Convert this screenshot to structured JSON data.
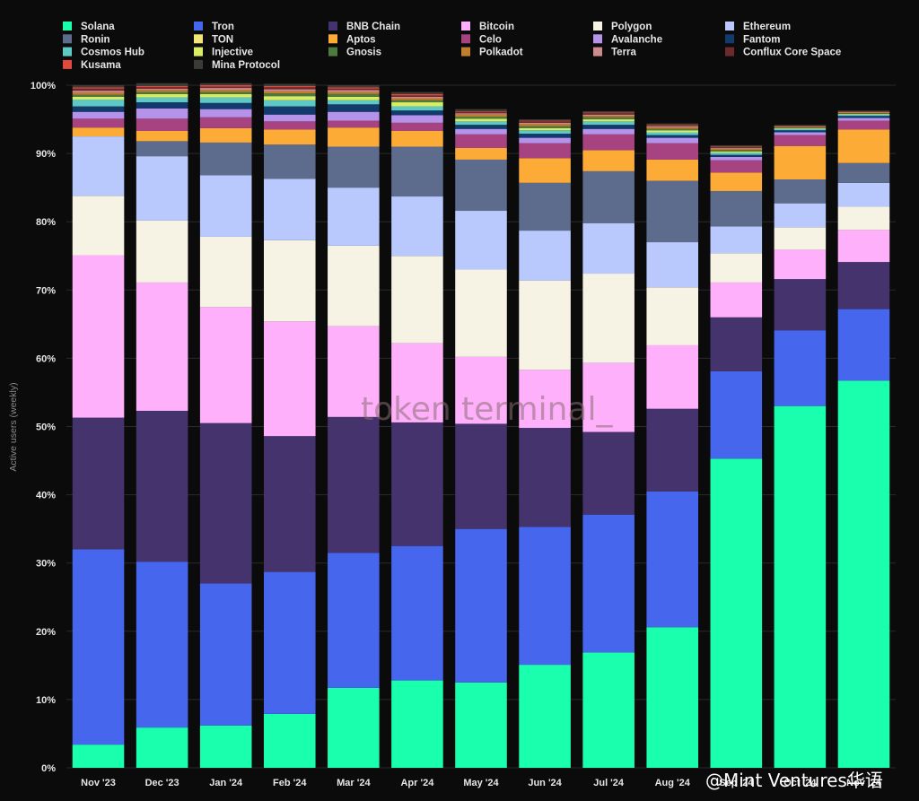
{
  "watermark": "token terminal_",
  "credit": "@Mint Ventures华语",
  "chart_data": {
    "type": "bar",
    "stacked": true,
    "ylabel": "Active users (weekly)",
    "ylim": [
      0,
      100
    ],
    "yticks": [
      "0%",
      "10%",
      "20%",
      "30%",
      "40%",
      "50%",
      "60%",
      "70%",
      "80%",
      "90%",
      "100%"
    ],
    "categories": [
      "Nov '23",
      "Dec '23",
      "Jan '24",
      "Feb '24",
      "Mar '24",
      "Apr '24",
      "May '24",
      "Jun '24",
      "Jul '24",
      "Aug '24",
      "Sep '24",
      "Oct '24",
      "Nov '24"
    ],
    "legend_position": "top",
    "series": [
      {
        "name": "Solana",
        "color": "#19ffad",
        "values": [
          3.4,
          5.9,
          6.2,
          7.9,
          11.7,
          12.8,
          12.5,
          15.1,
          16.9,
          20.6,
          45.3,
          53.0,
          56.7
        ]
      },
      {
        "name": "Tron",
        "color": "#4766ee",
        "values": [
          28.6,
          24.3,
          20.8,
          20.8,
          19.8,
          19.7,
          22.5,
          20.2,
          20.2,
          19.9,
          12.8,
          11.1,
          10.5
        ]
      },
      {
        "name": "BNB Chain",
        "color": "#45336d",
        "values": [
          19.3,
          22.1,
          23.5,
          19.9,
          19.9,
          18.1,
          15.4,
          14.5,
          12.1,
          12.1,
          7.9,
          7.5,
          6.9
        ]
      },
      {
        "name": "Bitcoin",
        "color": "#ffb0fb",
        "values": [
          23.8,
          18.8,
          17.0,
          16.8,
          13.3,
          11.6,
          9.8,
          8.5,
          10.1,
          9.3,
          5.1,
          4.3,
          4.7
        ]
      },
      {
        "name": "Polygon",
        "color": "#f6f3e5",
        "values": [
          8.7,
          9.1,
          10.3,
          11.9,
          11.8,
          12.8,
          12.8,
          13.1,
          13.1,
          8.5,
          4.3,
          3.3,
          3.4
        ]
      },
      {
        "name": "Ethereum",
        "color": "#b9c9fe",
        "values": [
          8.7,
          9.4,
          9.0,
          9.0,
          8.5,
          8.7,
          8.6,
          7.3,
          7.4,
          6.6,
          3.9,
          3.5,
          3.5
        ]
      },
      {
        "name": "Ronin",
        "color": "#5d6b8c",
        "values": [
          0.0,
          2.2,
          4.8,
          5.0,
          6.0,
          7.3,
          7.5,
          7.0,
          7.6,
          9.0,
          5.2,
          3.5,
          2.9
        ]
      },
      {
        "name": "TON",
        "color": "#f2e37b",
        "values": [
          0.0,
          0.0,
          0.0,
          0.0,
          0.0,
          0.0,
          0.0,
          0.0,
          0.0,
          0.0,
          0.0,
          0.0,
          0.0
        ]
      },
      {
        "name": "Aptos",
        "color": "#fbab36",
        "values": [
          1.3,
          1.5,
          2.1,
          2.2,
          2.8,
          2.3,
          1.7,
          3.6,
          3.1,
          3.1,
          2.7,
          4.9,
          4.9
        ]
      },
      {
        "name": "Celo",
        "color": "#a84381",
        "values": [
          1.3,
          1.8,
          1.6,
          1.2,
          1.0,
          1.2,
          2.0,
          2.2,
          2.3,
          2.4,
          1.8,
          1.6,
          1.3
        ]
      },
      {
        "name": "Avalanche",
        "color": "#b593ea",
        "values": [
          1.0,
          1.5,
          1.2,
          1.0,
          1.3,
          1.1,
          0.8,
          0.8,
          0.8,
          0.8,
          0.5,
          0.4,
          0.4
        ]
      },
      {
        "name": "Fantom",
        "color": "#123a6c",
        "values": [
          0.8,
          0.9,
          0.9,
          1.2,
          1.1,
          0.7,
          0.6,
          0.6,
          0.6,
          0.4,
          0.3,
          0.3,
          0.3
        ]
      },
      {
        "name": "Cosmos Hub",
        "color": "#5ec9c4",
        "values": [
          1.0,
          0.7,
          0.8,
          0.9,
          0.6,
          0.6,
          0.5,
          0.5,
          0.5,
          0.4,
          0.3,
          0.2,
          0.2
        ]
      },
      {
        "name": "Injective",
        "color": "#d8ec65",
        "values": [
          0.4,
          0.5,
          0.5,
          0.6,
          0.5,
          0.6,
          0.4,
          0.3,
          0.3,
          0.3,
          0.2,
          0.1,
          0.1
        ]
      },
      {
        "name": "Gnosis",
        "color": "#4d7a3e",
        "values": [
          0.3,
          0.3,
          0.3,
          0.4,
          0.4,
          0.3,
          0.3,
          0.3,
          0.3,
          0.2,
          0.2,
          0.1,
          0.1
        ]
      },
      {
        "name": "Polkadot",
        "color": "#c07f2d",
        "values": [
          0.3,
          0.3,
          0.3,
          0.3,
          0.3,
          0.3,
          0.3,
          0.3,
          0.2,
          0.2,
          0.2,
          0.1,
          0.1
        ]
      },
      {
        "name": "Terra",
        "color": "#cf8b8b",
        "values": [
          0.3,
          0.2,
          0.3,
          0.3,
          0.3,
          0.2,
          0.2,
          0.2,
          0.2,
          0.2,
          0.1,
          0.1,
          0.1
        ]
      },
      {
        "name": "Conflux Core Space",
        "color": "#6c2a2d",
        "values": [
          0.3,
          0.2,
          0.2,
          0.3,
          0.2,
          0.2,
          0.2,
          0.2,
          0.2,
          0.1,
          0.1,
          0.1,
          0.1
        ]
      },
      {
        "name": "Kusama",
        "color": "#e04a3e",
        "values": [
          0.2,
          0.2,
          0.2,
          0.2,
          0.2,
          0.2,
          0.1,
          0.1,
          0.1,
          0.1,
          0.1,
          0.0,
          0.0
        ]
      },
      {
        "name": "Mina Protocol",
        "color": "#3a3d37",
        "values": [
          0.3,
          0.4,
          0.3,
          0.3,
          0.3,
          0.3,
          0.3,
          0.2,
          0.2,
          0.2,
          0.2,
          0.1,
          0.1
        ]
      }
    ]
  }
}
